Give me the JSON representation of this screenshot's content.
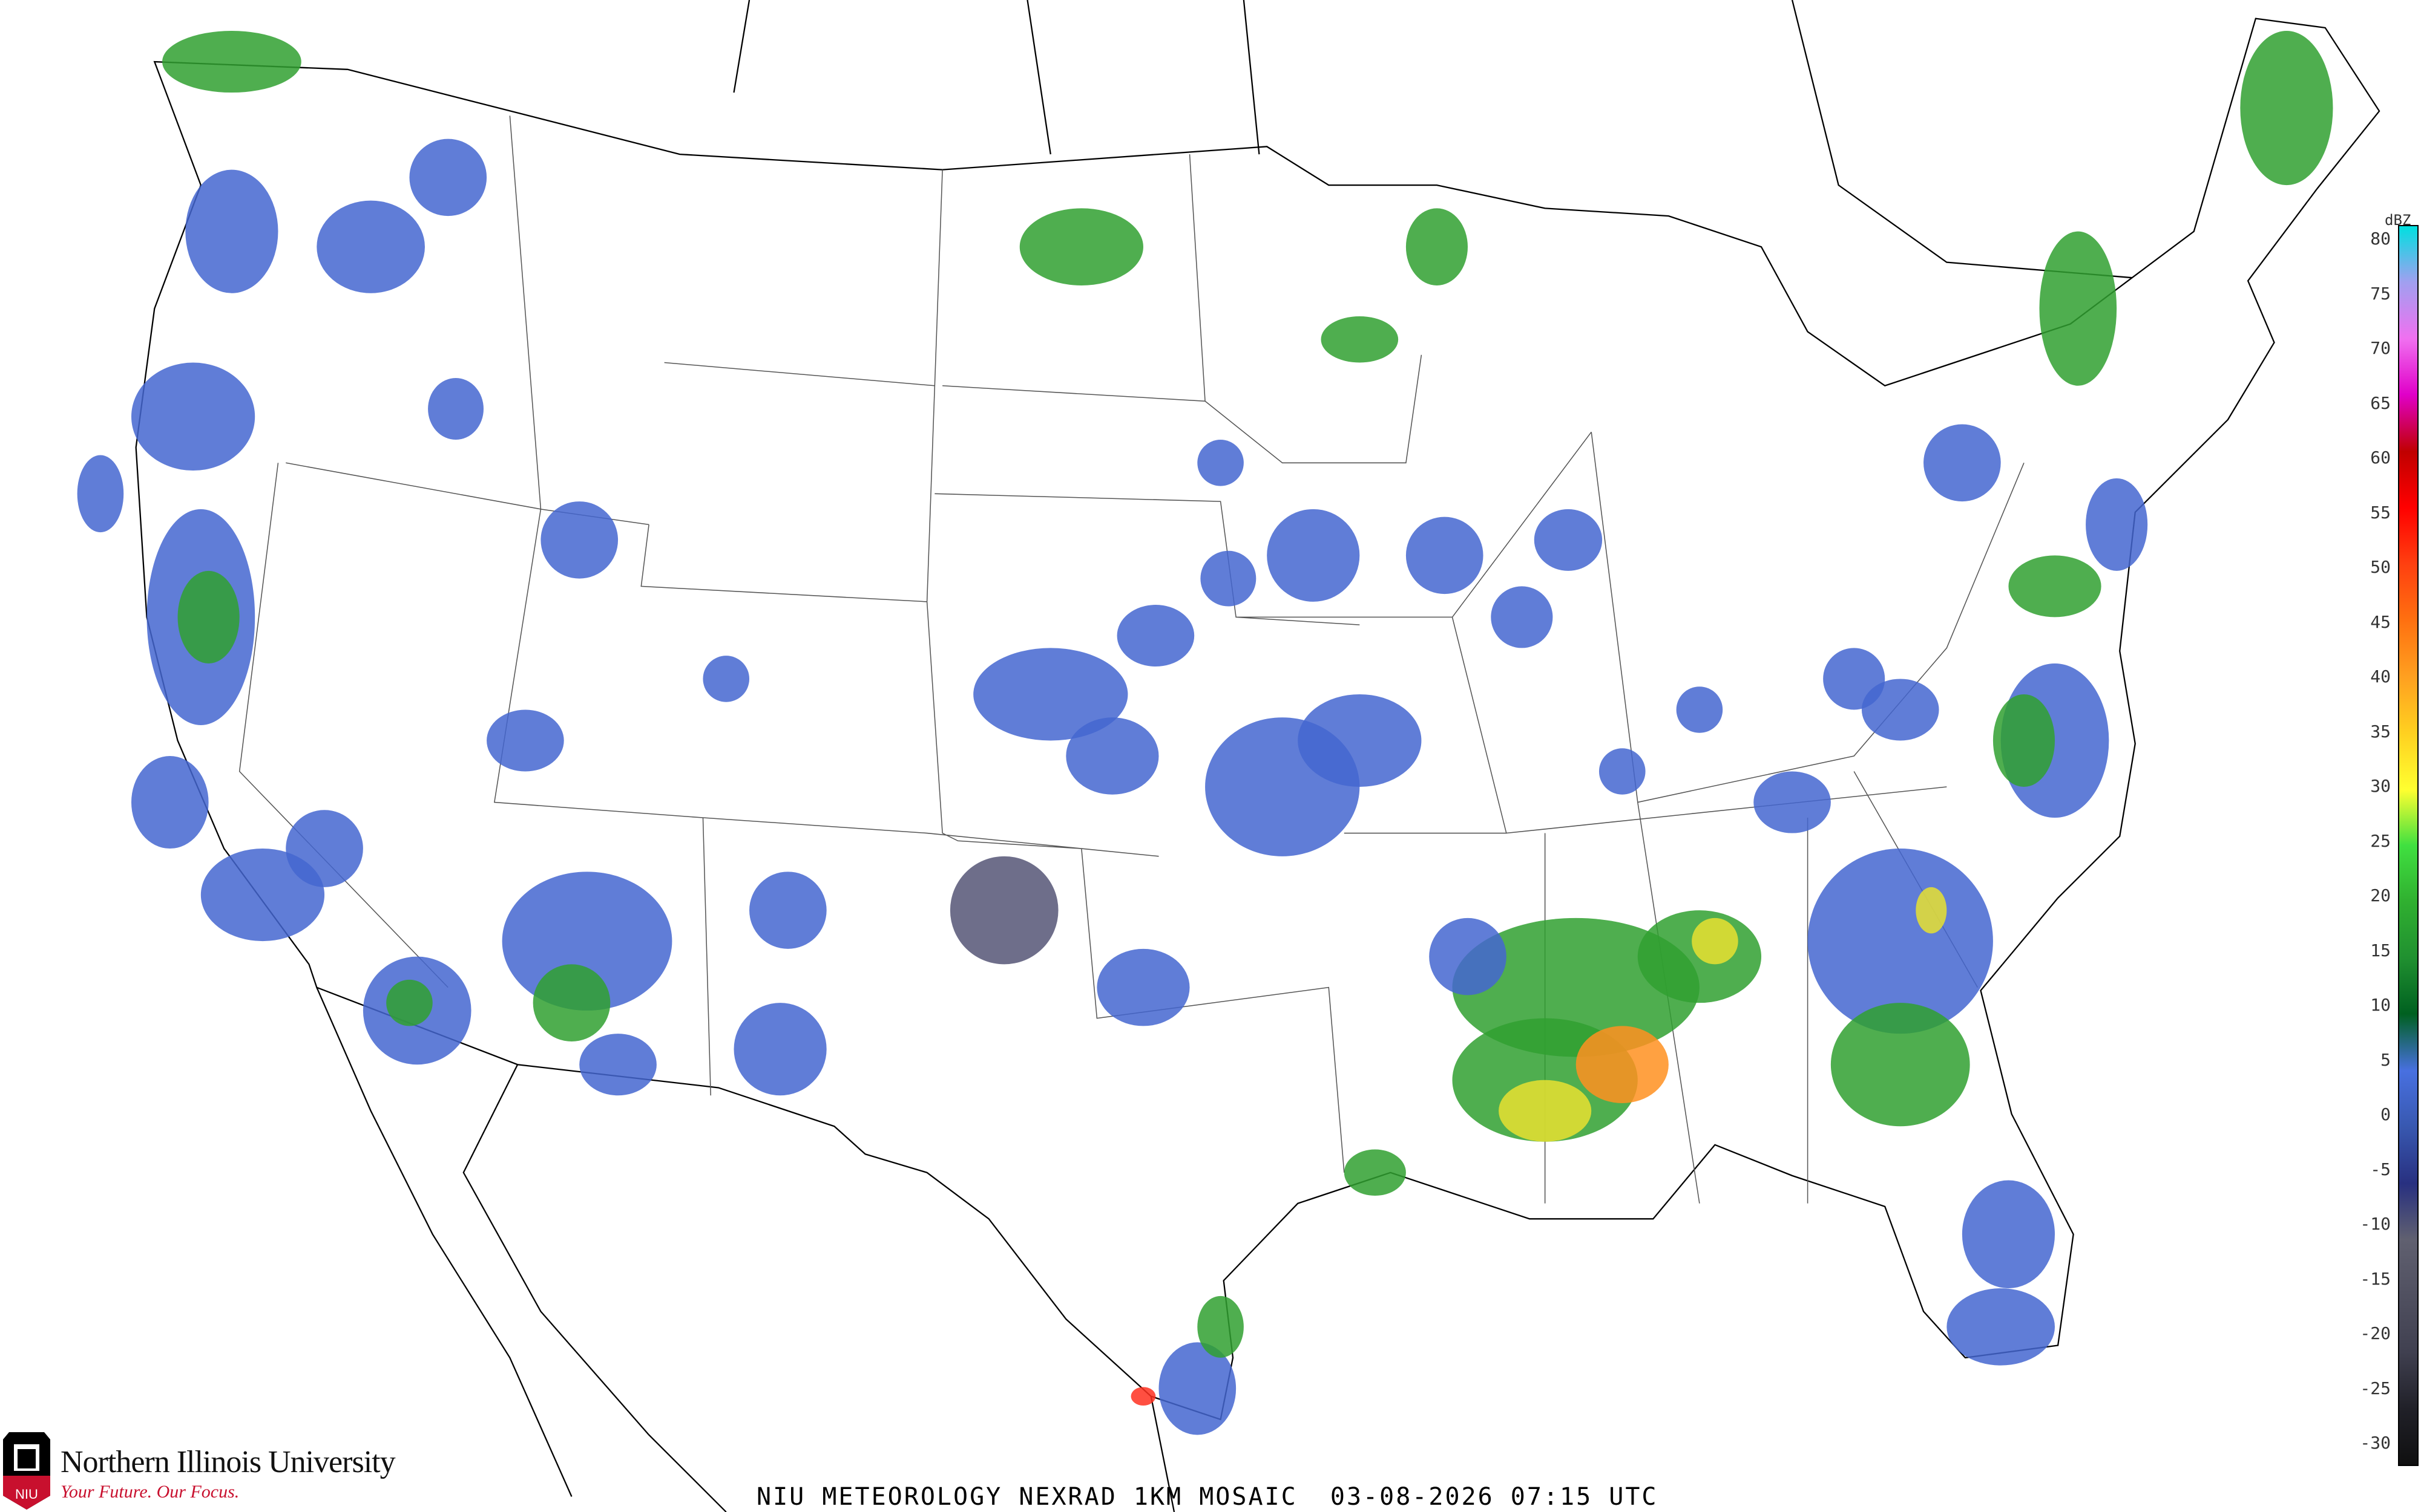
{
  "caption": "NIU METEOROLOGY NEXRAD 1KM MOSAIC  03-08-2026 07:15 UTC",
  "logo": {
    "name": "Northern Illinois University",
    "tagline": "Your Future. Our Focus.",
    "shield_text": "NIU",
    "colors": {
      "primary": "#c8102e",
      "dark": "#000000"
    }
  },
  "legend": {
    "unit": "dBZ",
    "labels": [
      "80",
      "75",
      "70",
      "65",
      "60",
      "55",
      "50",
      "45",
      "40",
      "35",
      "30",
      "25",
      "20",
      "15",
      "10",
      "5",
      "0",
      "-5",
      "-10",
      "-15",
      "-20",
      "-25",
      "-30"
    ],
    "colors": {
      "80": "#00e0e0",
      "75": "#a0a0f0",
      "70": "#f070f0",
      "65": "#e000c8",
      "60": "#c00000",
      "55": "#ff0000",
      "50": "#ff4010",
      "45": "#ff7010",
      "40": "#ffa020",
      "35": "#ffd020",
      "30": "#ffff30",
      "25": "#40e040",
      "20": "#30b030",
      "15": "#209030",
      "10": "#006020",
      "5": "#4870e0",
      "0": "#3858b0",
      "-5": "#283080",
      "-10": "#606070",
      "-15": "#505060",
      "-20": "#404050",
      "-25": "#202028",
      "-30": "#101010"
    }
  }
}
